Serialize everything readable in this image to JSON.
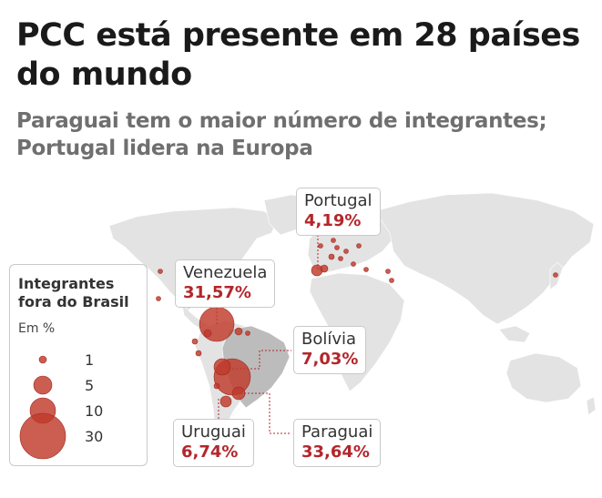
{
  "title": "PCC está presente em 28 países do mundo",
  "subtitle": "Paraguai tem o maior número de integrantes; Portugal lidera na Europa",
  "legend": {
    "title": "Integrantes fora do Brasil",
    "unit": "Em %",
    "sizes": [
      "1",
      "5",
      "10",
      "30"
    ]
  },
  "callouts": {
    "portugal": {
      "name": "Portugal",
      "value": "4,19%"
    },
    "venezuela": {
      "name": "Venezuela",
      "value": "31,57%"
    },
    "bolivia": {
      "name": "Bolívia",
      "value": "7,03%"
    },
    "uruguai": {
      "name": "Uruguai",
      "value": "6,74%"
    },
    "paraguai": {
      "name": "Paraguai",
      "value": "33,64%"
    }
  },
  "colors": {
    "bubble": "#c0392b",
    "land": "#e3e3e3",
    "brazil": "#bcbcbc",
    "accent": "#b3262b"
  },
  "map_data": {
    "bubbles_pct": {
      "Paraguai": 33.64,
      "Venezuela": 31.57,
      "Bolívia": 7.03,
      "Uruguai": 6.74,
      "Portugal": 4.19
    }
  }
}
